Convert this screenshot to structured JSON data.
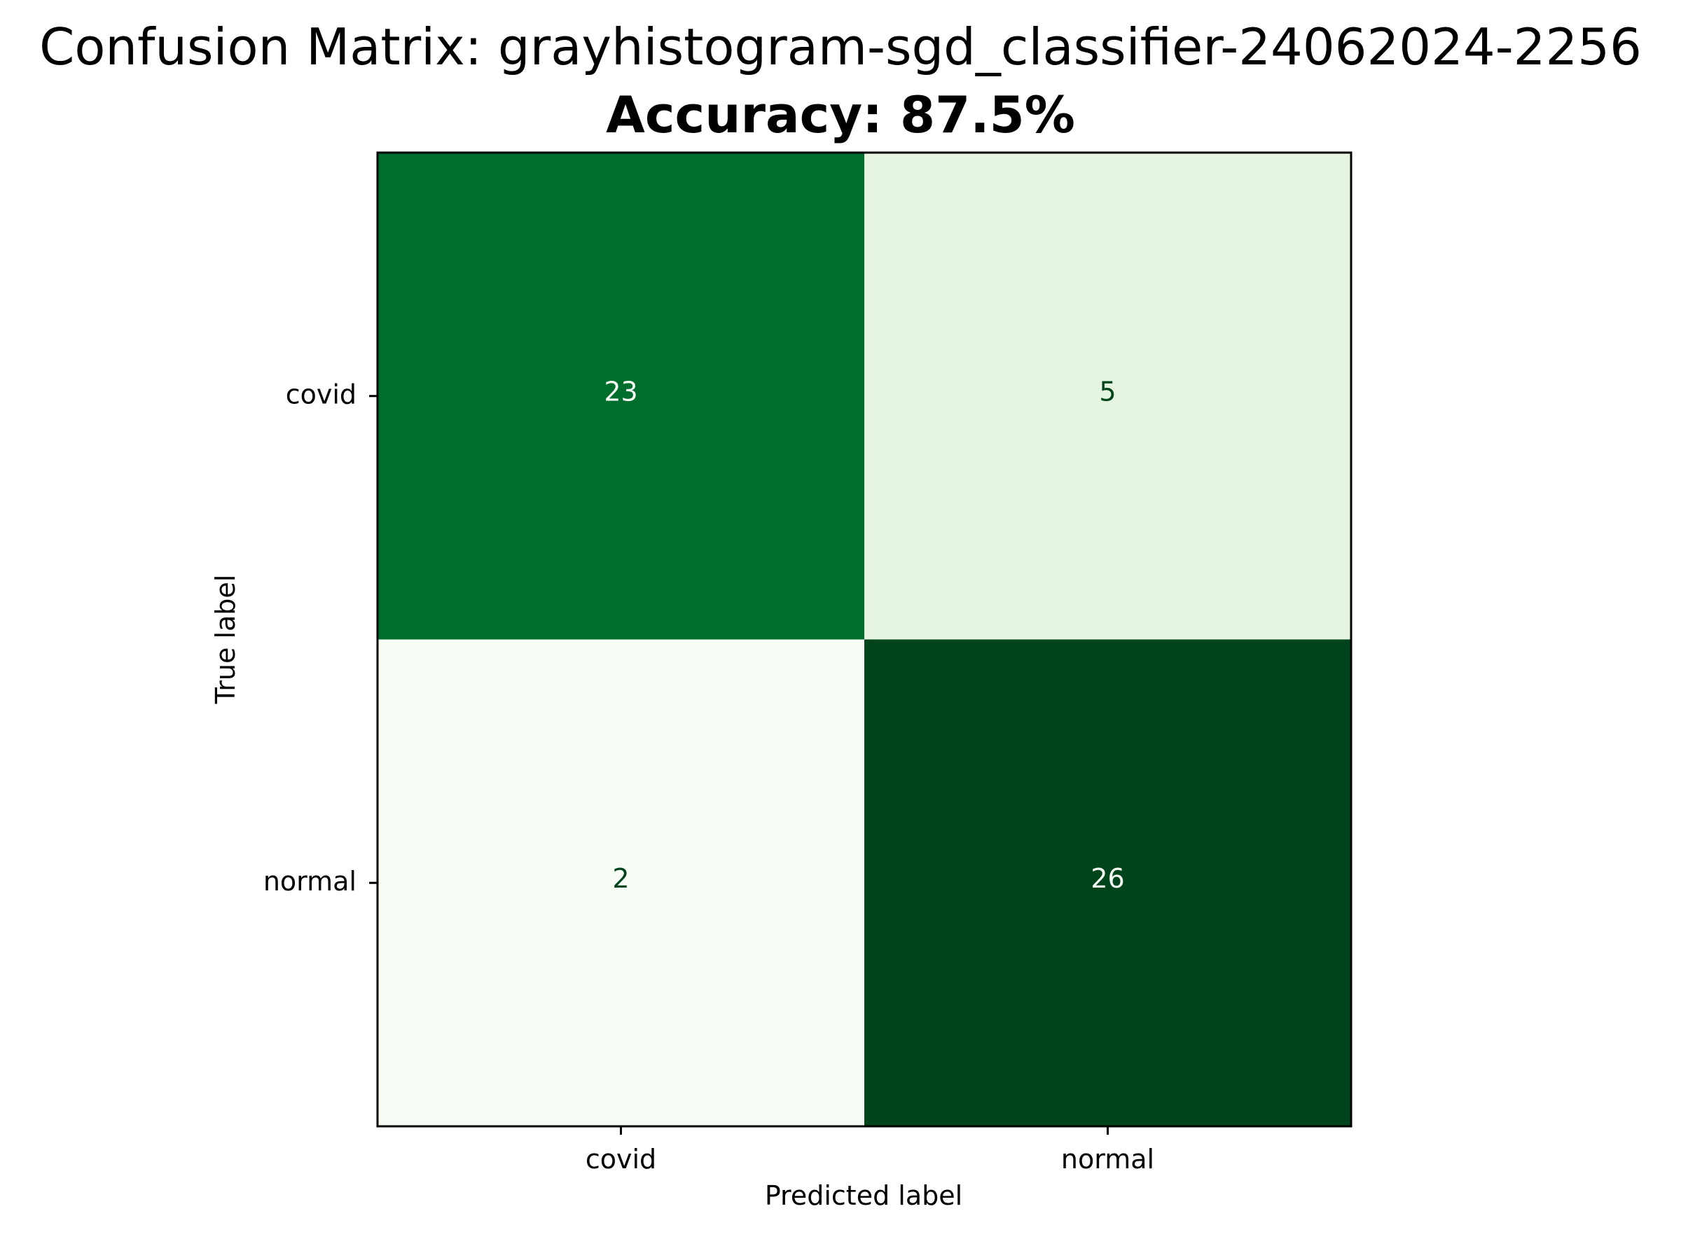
{
  "chart_data": {
    "type": "heatmap",
    "title": "Confusion Matrix: grayhistogram-sgd_classifier-24062024-2256",
    "subtitle": "Accuracy: 87.5%",
    "xlabel": "Predicted label",
    "ylabel": "True label",
    "x_categories": [
      "covid",
      "normal"
    ],
    "y_categories": [
      "covid",
      "normal"
    ],
    "values": [
      [
        23,
        5
      ],
      [
        2,
        26
      ]
    ],
    "colormap": "Greens",
    "colors": {
      "low": "#f7fcf5",
      "high": "#00441b",
      "text_on_dark": "#f7fcf5",
      "text_on_light": "#00441b"
    },
    "grid": false,
    "legend": "none"
  }
}
